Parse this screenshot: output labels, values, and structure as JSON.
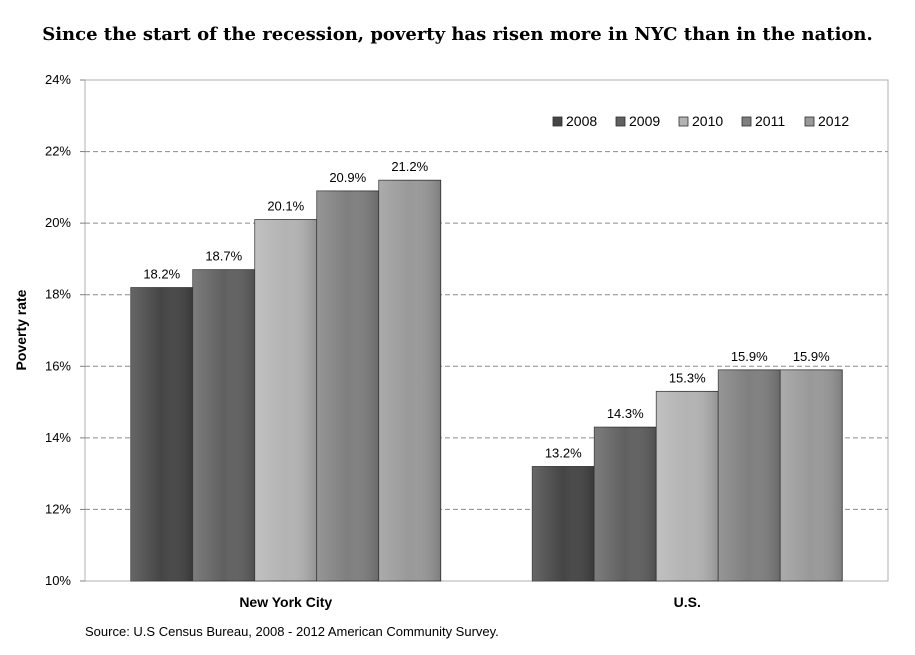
{
  "chart_data": {
    "type": "bar",
    "title": "Since the start of the recession, poverty has risen more in NYC than in the nation.",
    "ylabel": "Poverty rate",
    "xlabel": "",
    "categories": [
      "New York City",
      "U.S."
    ],
    "series": [
      {
        "name": "2008",
        "values": [
          18.2,
          13.2
        ],
        "labels": [
          "18.2%",
          "13.2%"
        ],
        "color": "#454545"
      },
      {
        "name": "2009",
        "values": [
          18.7,
          14.3
        ],
        "labels": [
          "18.7%",
          "14.3%"
        ],
        "color": "#606060"
      },
      {
        "name": "2010",
        "values": [
          20.1,
          15.3
        ],
        "labels": [
          "20.1%",
          "15.3%"
        ],
        "color": "#b3b3b3"
      },
      {
        "name": "2011",
        "values": [
          20.9,
          15.9
        ],
        "labels": [
          "20.9%",
          "15.9%"
        ],
        "color": "#7f7f7f"
      },
      {
        "name": "2012",
        "values": [
          21.2,
          15.9
        ],
        "labels": [
          "21.2%",
          "15.9%"
        ],
        "color": "#999999"
      }
    ],
    "ylim": [
      10,
      24
    ],
    "yticks": [
      10,
      12,
      14,
      16,
      18,
      20,
      22,
      24
    ],
    "ytick_labels": [
      "10%",
      "12%",
      "14%",
      "16%",
      "18%",
      "20%",
      "22%",
      "24%"
    ],
    "grid": true,
    "legend_position": "top-right",
    "source": "Source: U.S Census Bureau, 2008 - 2012 American Community Survey."
  }
}
